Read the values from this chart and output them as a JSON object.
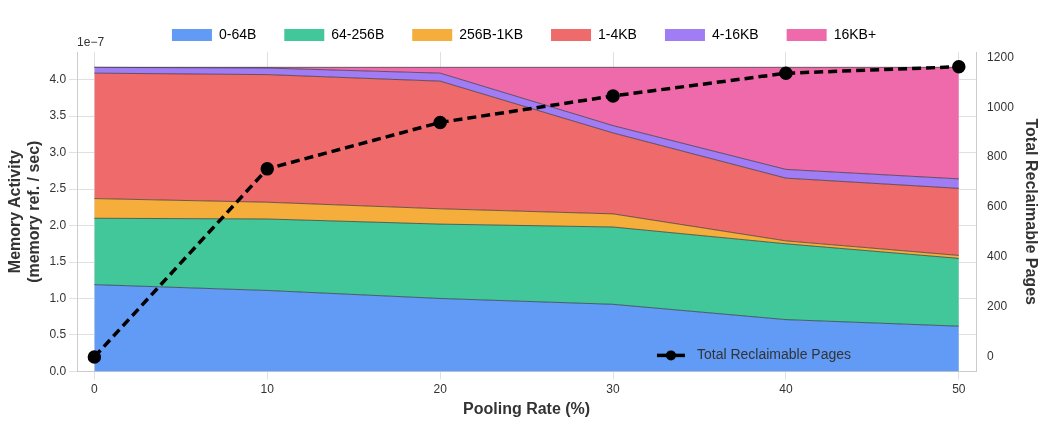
{
  "chart_data": {
    "type": "area",
    "stacked": true,
    "xlabel": "Pooling Rate (%)",
    "ylabel": "Memory Activity\n(memory ref. / sec)",
    "y2label": "Total Reclaimable Pages",
    "x": [
      0,
      10,
      20,
      30,
      40,
      50
    ],
    "series": [
      {
        "name": "0-64B",
        "color": "#619bf5",
        "values": [
          1.19,
          1.11,
          1.0,
          0.92,
          0.71,
          0.62
        ]
      },
      {
        "name": "64-256B",
        "color": "#41c799",
        "values": [
          0.91,
          0.98,
          1.02,
          1.06,
          1.04,
          0.93
        ]
      },
      {
        "name": "256B-1KB",
        "color": "#f5ae3c",
        "values": [
          0.27,
          0.23,
          0.21,
          0.18,
          0.04,
          0.04
        ]
      },
      {
        "name": "1-4KB",
        "color": "#ef6a6a",
        "values": [
          1.72,
          1.75,
          1.75,
          1.11,
          0.86,
          0.92
        ]
      },
      {
        "name": "4-16KB",
        "color": "#a07cf5",
        "values": [
          0.08,
          0.09,
          0.11,
          0.1,
          0.12,
          0.13
        ]
      },
      {
        "name": "16KB+",
        "color": "#ef6aab",
        "values": [
          0.0,
          0.01,
          0.08,
          0.8,
          1.4,
          1.53
        ]
      },
      {
        "name": "Total Reclaimable Pages",
        "type": "line",
        "axis": "y2",
        "color": "#000000",
        "marker": "circle",
        "line_style": "dashed",
        "values": [
          0,
          753,
          939,
          1045,
          1136,
          1162
        ]
      }
    ],
    "xlim": [
      -1,
      51
    ],
    "xticks": [
      0,
      10,
      20,
      30,
      40,
      50
    ],
    "ylim": [
      0,
      4.38
    ],
    "yticks": [
      {
        "value": 0,
        "label": "0.0"
      },
      0.5,
      {
        "value": 1,
        "label": "1.0"
      },
      1.5,
      {
        "value": 2,
        "label": "2.0"
      },
      2.5,
      {
        "value": 3,
        "label": "3.0"
      },
      3.5,
      {
        "value": 4,
        "label": "4.0"
      }
    ],
    "y2lim": [
      -58,
      1221
    ],
    "y2ticks": [
      0,
      200,
      400,
      600,
      800,
      1000,
      1200
    ],
    "annotations": [
      "1e−7"
    ],
    "grid": true,
    "legend": "top"
  }
}
